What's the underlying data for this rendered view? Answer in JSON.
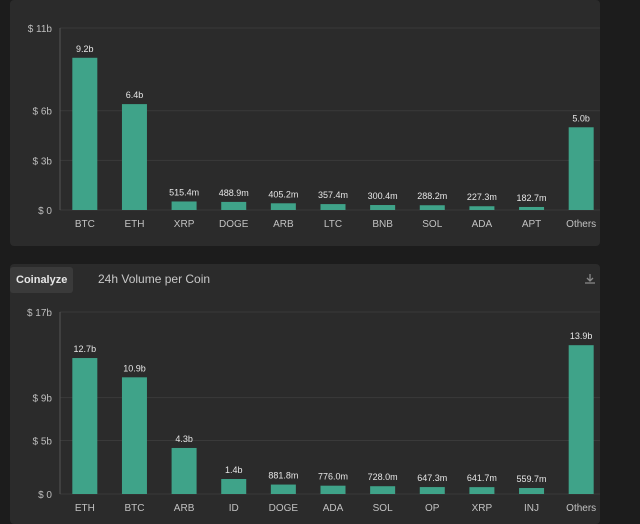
{
  "panels": [
    {
      "brand": "",
      "title": "",
      "icons": [
        "download-icon",
        "fullscreen-icon"
      ]
    },
    {
      "brand": "Coinalyze",
      "title": "24h Volume per Coin",
      "icons": [
        "download-icon",
        "fullscreen-icon"
      ]
    }
  ],
  "colors": {
    "bar": "#3fa389",
    "grid": "#3a3a3a",
    "axis": "#555555"
  },
  "chart_data": [
    {
      "type": "bar",
      "title": "",
      "categories": [
        "BTC",
        "ETH",
        "XRP",
        "DOGE",
        "ARB",
        "LTC",
        "BNB",
        "SOL",
        "ADA",
        "APT",
        "Others"
      ],
      "values": [
        9.2,
        6.4,
        0.5154,
        0.4889,
        0.4052,
        0.3574,
        0.3004,
        0.2882,
        0.2273,
        0.1827,
        5.0
      ],
      "labels": [
        "9.2b",
        "6.4b",
        "515.4m",
        "488.9m",
        "405.2m",
        "357.4m",
        "300.4m",
        "288.2m",
        "227.3m",
        "182.7m",
        "5.0b"
      ],
      "yticks": [
        0,
        3,
        6,
        11
      ],
      "ytick_labels": [
        "$ 0",
        "$ 3b",
        "$ 6b",
        "$ 11b"
      ],
      "ylim": [
        0,
        11
      ],
      "grid": true
    },
    {
      "type": "bar",
      "title": "24h Volume per Coin",
      "categories": [
        "ETH",
        "BTC",
        "ARB",
        "ID",
        "DOGE",
        "ADA",
        "SOL",
        "OP",
        "XRP",
        "INJ",
        "Others"
      ],
      "values": [
        12.7,
        10.9,
        4.3,
        1.4,
        0.8818,
        0.776,
        0.728,
        0.6473,
        0.6417,
        0.5597,
        13.9
      ],
      "labels": [
        "12.7b",
        "10.9b",
        "4.3b",
        "1.4b",
        "881.8m",
        "776.0m",
        "728.0m",
        "647.3m",
        "641.7m",
        "559.7m",
        "13.9b"
      ],
      "yticks": [
        0,
        5,
        9,
        17
      ],
      "ytick_labels": [
        "$ 0",
        "$ 5b",
        "$ 9b",
        "$ 17b"
      ],
      "ylim": [
        0,
        17
      ],
      "grid": true
    }
  ]
}
